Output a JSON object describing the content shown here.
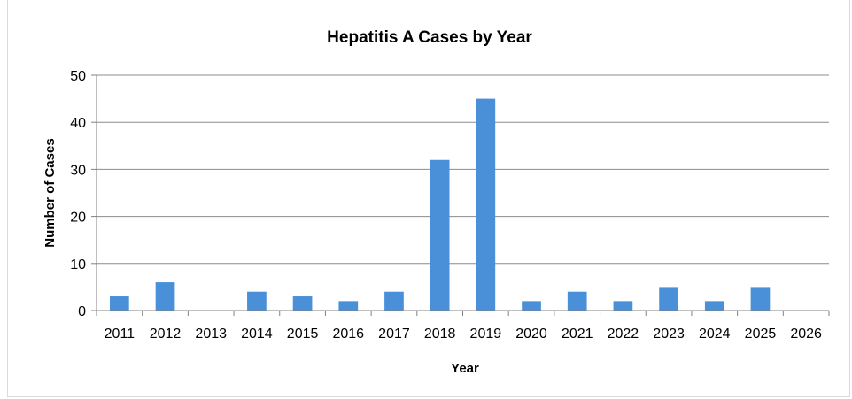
{
  "chart_data": {
    "type": "bar",
    "title": "Hepatitis A Cases by Year",
    "xlabel": "Year",
    "ylabel": "Number of Cases",
    "categories": [
      "2011",
      "2012",
      "2013",
      "2014",
      "2015",
      "2016",
      "2017",
      "2018",
      "2019",
      "2020",
      "2021",
      "2022",
      "2023",
      "2024",
      "2025",
      "2026"
    ],
    "values": [
      3,
      6,
      0,
      4,
      3,
      2,
      4,
      32,
      45,
      2,
      4,
      2,
      5,
      2,
      5,
      0
    ],
    "ylim": [
      0,
      50
    ],
    "yticks": [
      0,
      10,
      20,
      30,
      40,
      50
    ],
    "grid": true,
    "legend": "none",
    "colors": {
      "bar": "#4a90d9",
      "grid": "#8c8c8c",
      "axis": "#808080"
    }
  }
}
